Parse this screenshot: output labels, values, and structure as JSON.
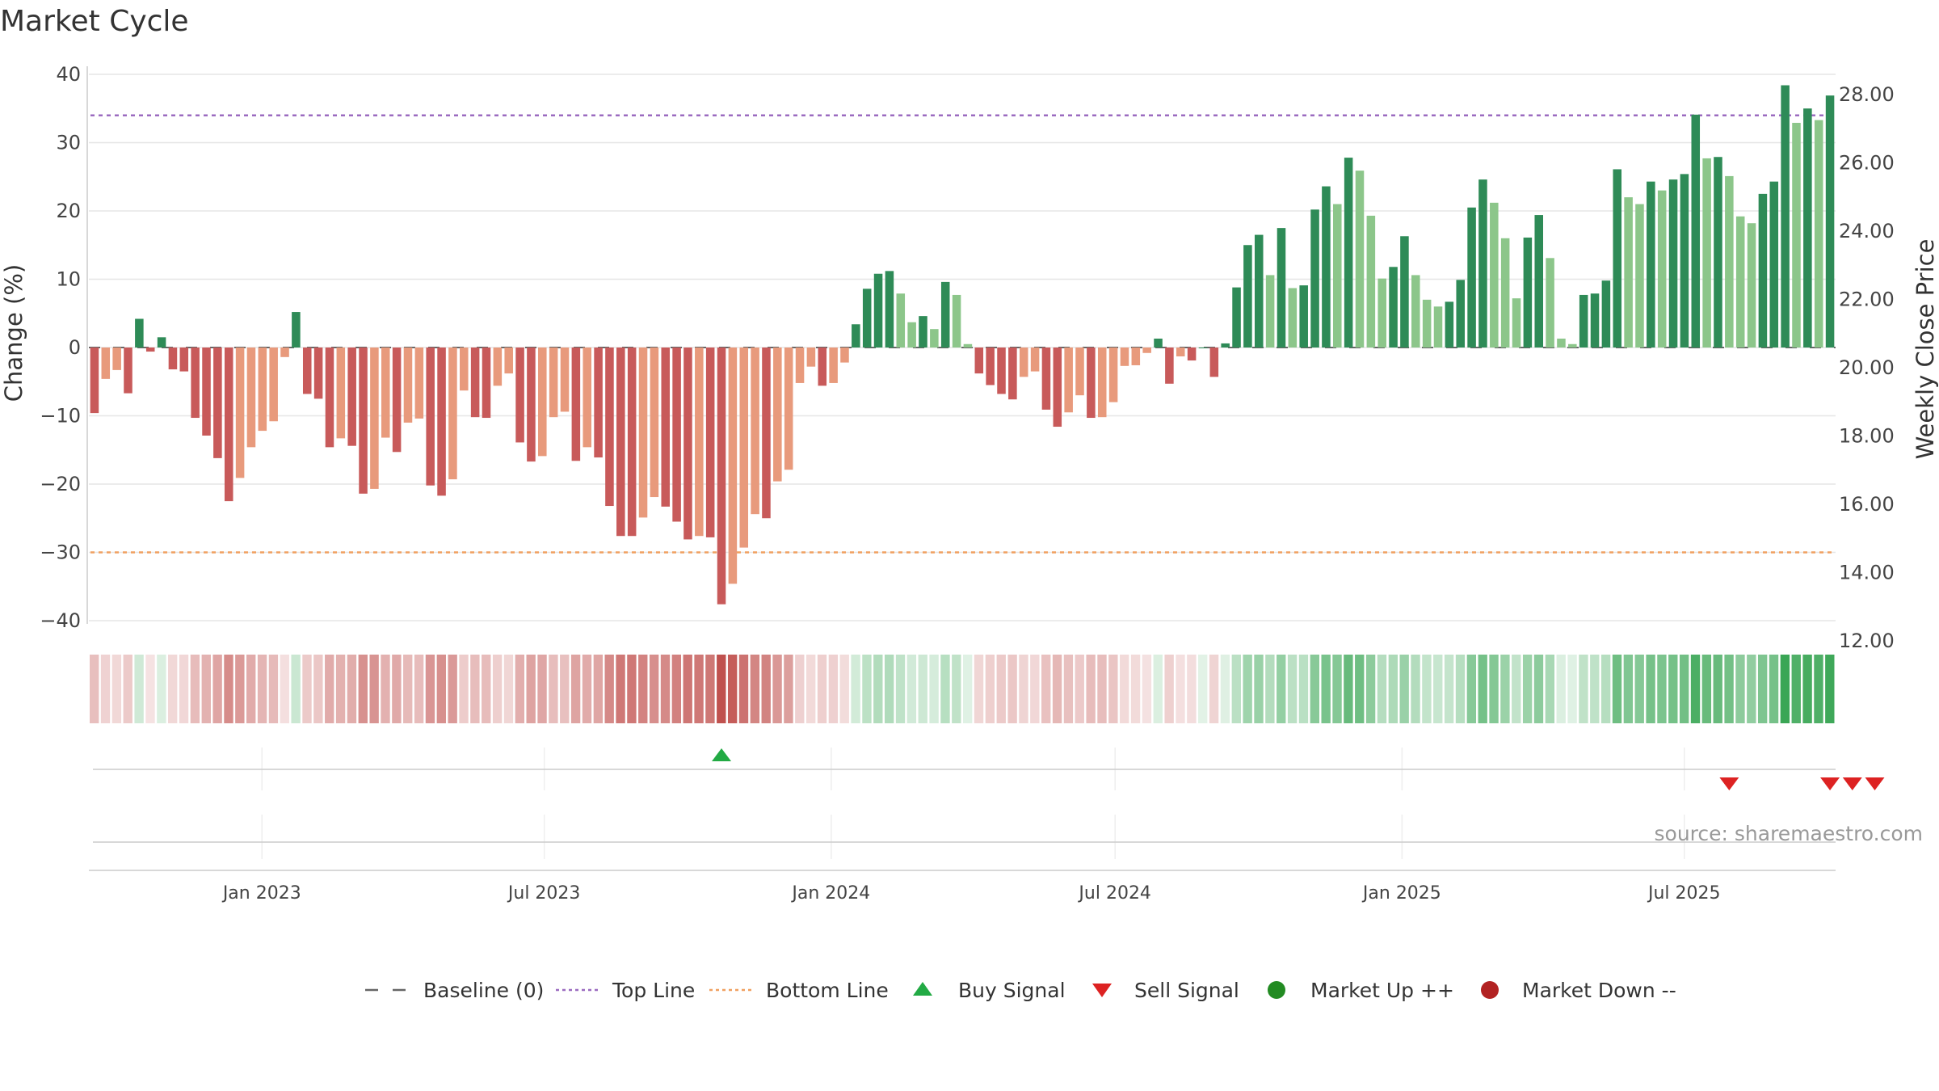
{
  "chart_data": {
    "type": "bar",
    "title": "Market Cycle",
    "ylabel_left": "Change (%)",
    "ylabel_right": "Weekly Close Price",
    "left_axis": {
      "ylim": [
        -40,
        40
      ],
      "ticks": [
        40,
        30,
        20,
        10,
        0,
        -10,
        -20,
        -30,
        -40
      ],
      "tick_labels": [
        "40",
        "30",
        "20",
        "10",
        "0",
        "−10",
        "−20",
        "−30",
        "−40"
      ]
    },
    "right_axis": {
      "ylim": [
        12,
        28
      ],
      "ticks": [
        28,
        26,
        24,
        22,
        20,
        18,
        16,
        14,
        12
      ],
      "tick_labels": [
        "28.00",
        "26.00",
        "24.00",
        "22.00",
        "20.00",
        "18.00",
        "16.00",
        "14.00",
        "12.00"
      ]
    },
    "top_line": 34,
    "bottom_line": -30,
    "x_range": [
      "2022-09-12",
      "2025-10-06"
    ],
    "x_ticks": [
      {
        "date": "2023-01-01",
        "label": "Jan 2023"
      },
      {
        "date": "2023-07-01",
        "label": "Jul 2023"
      },
      {
        "date": "2024-01-01",
        "label": "Jan 2024"
      },
      {
        "date": "2024-07-01",
        "label": "Jul 2024"
      },
      {
        "date": "2025-01-01",
        "label": "Jan 2025"
      },
      {
        "date": "2025-07-01",
        "label": "Jul 2025"
      }
    ],
    "start_week": "2022-09-12",
    "values": [
      -9.6,
      -4.6,
      -3.3,
      -6.7,
      4.2,
      -0.6,
      1.5,
      -3.2,
      -3.5,
      -10.3,
      -12.9,
      -16.2,
      -22.5,
      -19.1,
      -14.6,
      -12.2,
      -10.8,
      -1.4,
      5.2,
      -6.8,
      -7.5,
      -14.6,
      -13.3,
      -14.4,
      -21.4,
      -20.7,
      -13.2,
      -15.3,
      -11.0,
      -10.4,
      -20.2,
      -21.7,
      -19.3,
      -6.3,
      -10.2,
      -10.3,
      -5.6,
      -3.8,
      -13.9,
      -16.7,
      -15.9,
      -10.2,
      -9.4,
      -16.6,
      -14.6,
      -16.1,
      -23.2,
      -27.6,
      -27.6,
      -24.9,
      -21.9,
      -23.3,
      -25.5,
      -28.1,
      -27.6,
      -27.8,
      -37.6,
      -34.6,
      -29.3,
      -24.4,
      -25.0,
      -19.6,
      -17.9,
      -5.2,
      -2.8,
      -5.6,
      -5.2,
      -2.2,
      3.4,
      8.6,
      10.8,
      11.2,
      7.9,
      3.7,
      4.6,
      2.7,
      9.6,
      7.7,
      0.5,
      -3.8,
      -5.5,
      -6.8,
      -7.6,
      -4.3,
      -3.5,
      -9.1,
      -11.6,
      -9.5,
      -7.0,
      -10.3,
      -10.2,
      -8.0,
      -2.7,
      -2.6,
      -0.8,
      1.3,
      -5.3,
      -1.3,
      -1.9,
      0.0,
      -4.3,
      0.6,
      8.8,
      15.0,
      16.5,
      10.6,
      17.5,
      8.7,
      9.1,
      20.2,
      23.6,
      21.0,
      27.8,
      25.9,
      19.3,
      10.1,
      11.8,
      16.3,
      10.6,
      7.0,
      6.0,
      6.7,
      9.9,
      20.5,
      24.6,
      21.2,
      16.0,
      7.2,
      16.1,
      19.4,
      13.1,
      1.3,
      0.5,
      7.7,
      7.9,
      9.8,
      26.1,
      22.0,
      21.0,
      24.3,
      23.0,
      24.6,
      25.4,
      34.1,
      27.7,
      27.9,
      25.1,
      19.2,
      18.2,
      22.5,
      24.3,
      38.4,
      32.9,
      35.0,
      33.3,
      36.9
    ],
    "right_axis_values_shown": false,
    "signals": {
      "buy": [
        "2023-10-09"
      ],
      "sell": [
        "2025-06-30",
        "2025-09-01",
        "2025-09-15",
        "2025-09-29"
      ],
      "market_up": [],
      "market_down": []
    },
    "colors": {
      "neg_strong": "#c85a5a",
      "neg_light": "#e89a7c",
      "pos_strong": "#2e8b57",
      "pos_light": "#8cc68a",
      "top_line": "#9b6bc0",
      "bottom_line": "#f0a060",
      "baseline": "#666666",
      "buy": "#22aa44",
      "sell": "#dd2222",
      "market_up": "#228b22",
      "market_down": "#b22222",
      "strip_pos": "#3aa655",
      "strip_neg": "#c0504d"
    },
    "grid": true,
    "legend_position": "bottom",
    "legend": [
      {
        "key": "baseline",
        "label": "Baseline (0)"
      },
      {
        "key": "top",
        "label": "Top Line"
      },
      {
        "key": "bottom",
        "label": "Bottom Line"
      },
      {
        "key": "buy",
        "label": "Buy Signal"
      },
      {
        "key": "sell",
        "label": "Sell Signal"
      },
      {
        "key": "up",
        "label": "Market Up ++"
      },
      {
        "key": "down",
        "label": "Market Down --"
      }
    ],
    "source": "source: sharemaestro.com"
  }
}
